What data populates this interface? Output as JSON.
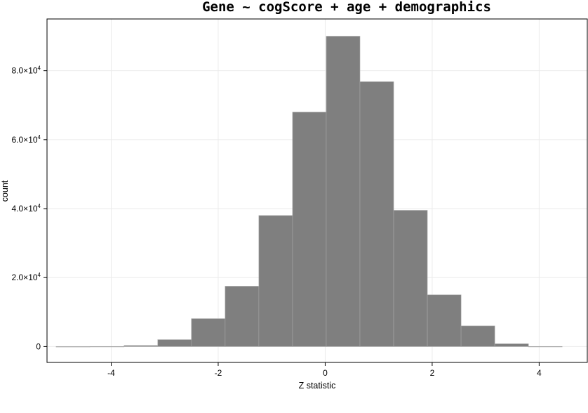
{
  "chart_data": {
    "type": "bar",
    "title": "Gene ~ cogScore + age + demographics",
    "xlabel": "Z statistic",
    "ylabel": "count",
    "xlim": [
      -5.2,
      4.9
    ],
    "ylim": [
      -4600,
      95000
    ],
    "x_ticks": [
      -4,
      -2,
      0,
      2,
      4
    ],
    "x_tick_labels": [
      "-4",
      "-2",
      "0",
      "2",
      "4"
    ],
    "y_ticks": [
      {
        "value": 0,
        "mantissa": "0",
        "exponent": ""
      },
      {
        "value": 20000,
        "mantissa": "2.0×10",
        "exponent": "4"
      },
      {
        "value": 40000,
        "mantissa": "4.0×10",
        "exponent": "4"
      },
      {
        "value": 60000,
        "mantissa": "6.0×10",
        "exponent": "4"
      },
      {
        "value": 80000,
        "mantissa": "8.0×10",
        "exponent": "4"
      }
    ],
    "grid": true,
    "bar_color": "#7f7f7f",
    "bins": [
      {
        "x0": -5.03,
        "x1": -4.4,
        "count": 0
      },
      {
        "x0": -4.4,
        "x1": -3.76,
        "count": 20
      },
      {
        "x0": -3.76,
        "x1": -3.13,
        "count": 300
      },
      {
        "x0": -3.13,
        "x1": -2.5,
        "count": 2000
      },
      {
        "x0": -2.5,
        "x1": -1.87,
        "count": 8100
      },
      {
        "x0": -1.87,
        "x1": -1.24,
        "count": 17500
      },
      {
        "x0": -1.24,
        "x1": -0.61,
        "count": 38000
      },
      {
        "x0": -0.61,
        "x1": 0.02,
        "count": 68000
      },
      {
        "x0": 0.02,
        "x1": 0.65,
        "count": 90000
      },
      {
        "x0": 0.65,
        "x1": 1.28,
        "count": 76800
      },
      {
        "x0": 1.28,
        "x1": 1.91,
        "count": 39500
      },
      {
        "x0": 1.91,
        "x1": 2.54,
        "count": 15000
      },
      {
        "x0": 2.54,
        "x1": 3.17,
        "count": 6000
      },
      {
        "x0": 3.17,
        "x1": 3.8,
        "count": 800
      },
      {
        "x0": 3.8,
        "x1": 4.43,
        "count": 20
      }
    ]
  }
}
